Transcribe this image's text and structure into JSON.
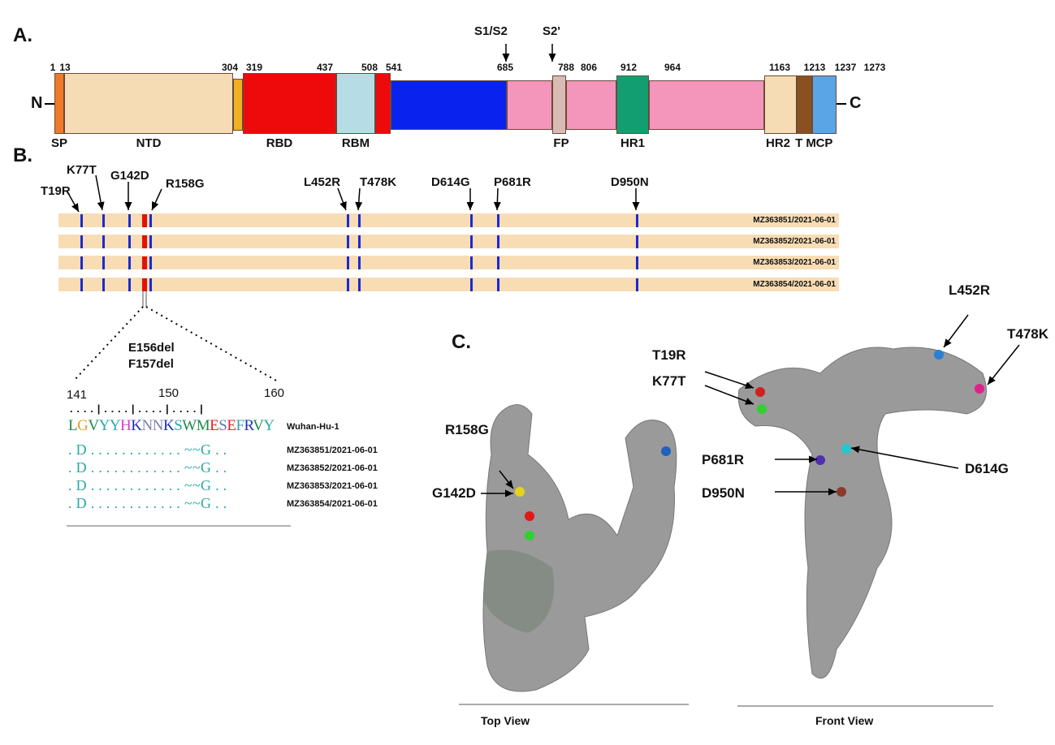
{
  "panels": {
    "a": "A.",
    "b": "B.",
    "c": "C."
  },
  "panelA": {
    "n_term": "N",
    "c_term": "C",
    "cleavage": [
      {
        "label": "S1/S2"
      },
      {
        "label": "S2'"
      }
    ],
    "positions": [
      "1",
      "13",
      "304",
      "319",
      "437",
      "508",
      "541",
      "685",
      "788",
      "806",
      "912",
      "964",
      "1163",
      "1213",
      "1237",
      "1273"
    ],
    "domains": [
      {
        "label": "SP",
        "color": "#f07a2a"
      },
      {
        "label": "NTD",
        "color": "#f6dcb4"
      },
      {
        "label": "",
        "color": "#f0b020"
      },
      {
        "label": "RBD",
        "color": "#ee0a0a"
      },
      {
        "label": "RBM",
        "color": "#b6dde6"
      },
      {
        "label": "",
        "color": "#ee0a0a"
      },
      {
        "label": "",
        "color": "#0a22ee"
      },
      {
        "label": "",
        "color": "#f495bb"
      },
      {
        "label": "FP",
        "color": "#d8bcb4"
      },
      {
        "label": "",
        "color": "#f495bb"
      },
      {
        "label": "HR1",
        "color": "#139e72"
      },
      {
        "label": "",
        "color": "#f495bb"
      },
      {
        "label": "HR2",
        "color": "#f6dcb4"
      },
      {
        "label": "T M",
        "color": "#8b5020"
      },
      {
        "label": "CP",
        "color": "#5aa5e6"
      }
    ]
  },
  "panelB": {
    "mutations": [
      "T19R",
      "K77T",
      "G142D",
      "R158G",
      "L452R",
      "T478K",
      "D614G",
      "P681R",
      "D950N"
    ],
    "sequences": [
      "MZ363851/2021-06-01",
      "MZ363852/2021-06-01",
      "MZ363853/2021-06-01",
      "MZ363854/2021-06-01"
    ],
    "deletion_label_1": "E156del",
    "deletion_label_2": "F157del",
    "substitution_color": "#1a2bd0",
    "deletion_color": "#e0140a",
    "alignment": {
      "ruler": [
        "141",
        "150",
        "160"
      ],
      "ruler_marks": ". . . . | . . . . | . . . . | . . . . |",
      "reference_name": "Wuhan-Hu-1",
      "reference": [
        {
          "c": "L",
          "color": "#1e8a4a"
        },
        {
          "c": "G",
          "color": "#e0a020"
        },
        {
          "c": "V",
          "color": "#1e8a4a"
        },
        {
          "c": "Y",
          "color": "#2aa8a8"
        },
        {
          "c": "Y",
          "color": "#2aa8a8"
        },
        {
          "c": "H",
          "color": "#d040d0"
        },
        {
          "c": "K",
          "color": "#2030b0"
        },
        {
          "c": "N",
          "color": "#8080b0"
        },
        {
          "c": "N",
          "color": "#8080b0"
        },
        {
          "c": "K",
          "color": "#2030b0"
        },
        {
          "c": "S",
          "color": "#2aa8a8"
        },
        {
          "c": "W",
          "color": "#1e8a4a"
        },
        {
          "c": "M",
          "color": "#1e8a4a"
        },
        {
          "c": "E",
          "color": "#e02020"
        },
        {
          "c": "S",
          "color": "#5080b0"
        },
        {
          "c": "E",
          "color": "#e02020"
        },
        {
          "c": "F",
          "color": "#2aa8a8"
        },
        {
          "c": "R",
          "color": "#2030b0"
        },
        {
          "c": "V",
          "color": "#1e8a4a"
        },
        {
          "c": "Y",
          "color": "#2aa8a8"
        }
      ],
      "variant": ". D . . . . . . . . . . . . ~~G . ."
    }
  },
  "panelC": {
    "top_view": {
      "caption": "Top View",
      "labels": [
        "R158G",
        "G142D"
      ]
    },
    "front_view": {
      "caption": "Front View",
      "labels": [
        "T19R",
        "K77T",
        "L452R",
        "T478K",
        "P681R",
        "D614G",
        "D950N"
      ]
    }
  }
}
